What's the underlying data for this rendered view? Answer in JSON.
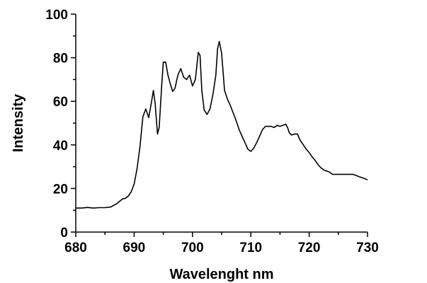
{
  "chart_data": {
    "type": "line",
    "title": "",
    "xlabel": "Wavelenght nm",
    "ylabel": "Intensity",
    "xlim": [
      680,
      730
    ],
    "ylim": [
      0,
      100
    ],
    "x_ticks": [
      680,
      690,
      700,
      710,
      720,
      730
    ],
    "x_tick_labels": [
      "680",
      "690",
      "700",
      "710",
      "720",
      "730"
    ],
    "y_ticks": [
      0,
      20,
      40,
      60,
      80,
      100
    ],
    "y_tick_labels": [
      "0",
      "20",
      "40",
      "60",
      "80",
      "100"
    ],
    "grid": false,
    "legend": "none",
    "line_color": "#000000",
    "series": [
      {
        "x": [
          680,
          681,
          682,
          683,
          684,
          685,
          686,
          687,
          688,
          688.5,
          689,
          689.5,
          690,
          690.5,
          691,
          691.5,
          692,
          692.5,
          693,
          693.3,
          693.6,
          694,
          694.3,
          694.7,
          695,
          695.4,
          695.8,
          696.2,
          696.6,
          697,
          697.5,
          698,
          698.5,
          699,
          699.5,
          700,
          700.5,
          701,
          701.3,
          701.6,
          702,
          702.5,
          703,
          703.5,
          704,
          704.3,
          704.6,
          705,
          705.5,
          706,
          706.5,
          707,
          707.5,
          708,
          708.5,
          709,
          709.5,
          710,
          710.5,
          711,
          711.5,
          712,
          712.5,
          713,
          713.5,
          714,
          714.5,
          715,
          715.5,
          716,
          716.3,
          716.6,
          717,
          717.5,
          718,
          718.3,
          718.6,
          719,
          719.5,
          720,
          720.5,
          721,
          721.5,
          722,
          722.5,
          723,
          723.5,
          724,
          724.5,
          725,
          725.5,
          726,
          726.5,
          727,
          727.5,
          728,
          728.5,
          729,
          729.5,
          730
        ],
        "y": [
          11,
          11,
          11.3,
          11,
          11.2,
          11.2,
          11.5,
          13,
          15.2,
          15.5,
          16.5,
          18.5,
          22,
          29,
          39,
          53,
          56.5,
          52.5,
          60,
          65,
          59,
          45,
          48,
          66,
          78,
          78,
          72,
          68,
          64.5,
          66,
          72,
          75,
          71,
          70,
          72,
          67,
          70,
          82.5,
          81,
          65,
          56,
          54,
          56.5,
          63,
          72,
          84,
          87.5,
          82,
          65,
          61,
          58,
          54.5,
          51,
          47,
          44,
          41,
          38,
          37,
          38.5,
          41,
          44,
          47,
          48.5,
          48.5,
          48.5,
          48,
          49,
          48.5,
          49,
          49.5,
          48,
          45.5,
          44.5,
          45,
          45,
          43,
          41.5,
          40,
          38,
          36.5,
          34.5,
          33,
          31,
          29.5,
          28.5,
          28,
          27.5,
          26.5,
          26.5,
          26.5,
          26.5,
          26.5,
          26.5,
          26.5,
          26.5,
          26,
          25.5,
          25,
          24.5,
          24
        ]
      }
    ]
  }
}
